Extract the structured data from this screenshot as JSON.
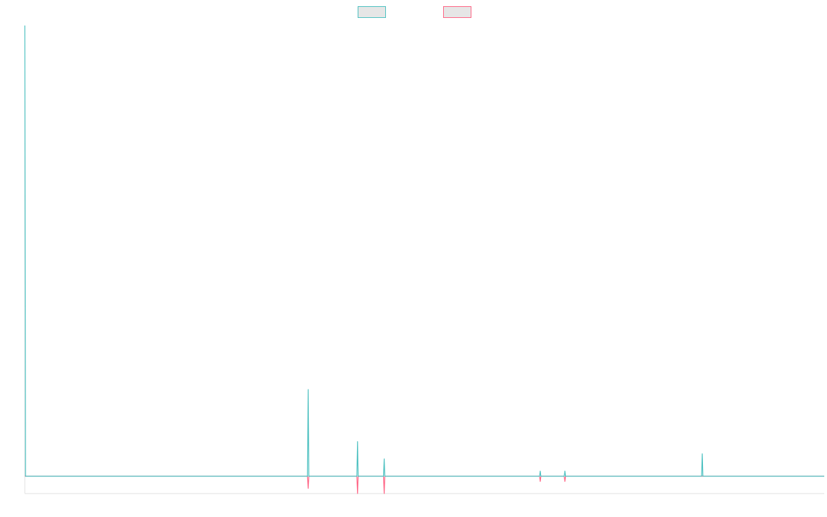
{
  "chart_data": {
    "type": "line",
    "title": "",
    "xlabel": "",
    "ylabel": "",
    "legend": {
      "placement": "top-center",
      "entries": [
        "",
        ""
      ]
    },
    "grid": false,
    "x_count": 1200,
    "ylim": [
      -1,
      26
    ],
    "series": [
      {
        "name": "",
        "color": "#4bc0c0",
        "fill": "#e6e6e6",
        "points": [
          [
            0,
            26
          ],
          [
            1,
            0
          ],
          [
            424,
            0
          ],
          [
            425,
            5
          ],
          [
            426,
            0
          ],
          [
            498,
            0
          ],
          [
            499,
            2
          ],
          [
            500,
            0
          ],
          [
            538,
            0
          ],
          [
            539,
            1
          ],
          [
            540,
            0
          ],
          [
            772,
            0
          ],
          [
            773,
            0.3
          ],
          [
            774,
            0
          ],
          [
            809,
            0
          ],
          [
            810,
            0.3
          ],
          [
            811,
            0
          ],
          [
            1015,
            0
          ],
          [
            1016,
            1.3
          ],
          [
            1017,
            0
          ],
          [
            1199,
            0
          ]
        ]
      },
      {
        "name": "",
        "color": "#ff6384",
        "fill": "#e6e6e6",
        "points": [
          [
            0,
            0
          ],
          [
            424,
            0
          ],
          [
            425,
            -0.7
          ],
          [
            426,
            0
          ],
          [
            498,
            0
          ],
          [
            499,
            -1
          ],
          [
            500,
            0
          ],
          [
            538,
            0
          ],
          [
            539,
            -1
          ],
          [
            540,
            0
          ],
          [
            772,
            0
          ],
          [
            773,
            -0.3
          ],
          [
            774,
            0
          ],
          [
            809,
            0
          ],
          [
            810,
            -0.3
          ],
          [
            811,
            0
          ],
          [
            1199,
            0
          ]
        ]
      }
    ]
  }
}
